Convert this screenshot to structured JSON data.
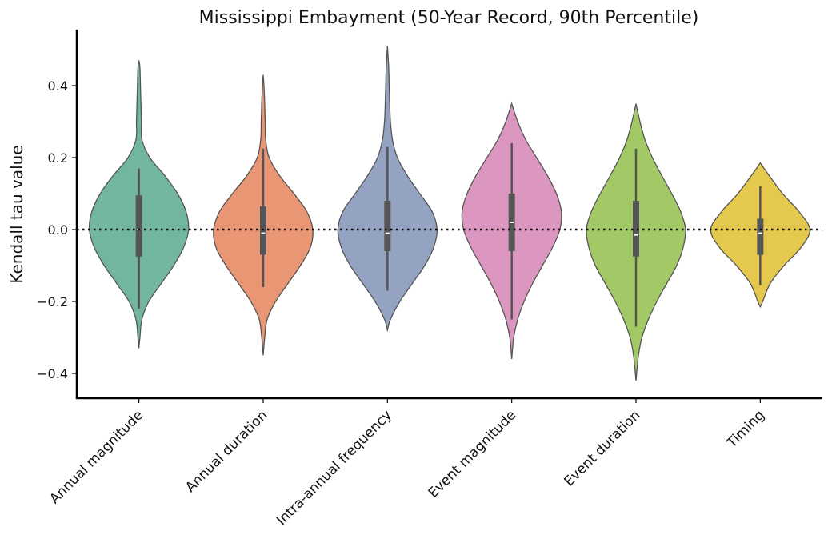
{
  "chart_data": {
    "type": "violin",
    "title": "Mississippi Embayment (50-Year Record, 90th Percentile)",
    "xlabel": "",
    "ylabel": "Kendall tau value",
    "ylim": [
      -0.47,
      0.55
    ],
    "yticks": [
      -0.4,
      -0.2,
      0.0,
      0.2,
      0.4
    ],
    "ytick_labels": [
      "−0.4",
      "−0.2",
      "0.0",
      "0.2",
      "0.4"
    ],
    "reference_line": {
      "y": 0.0,
      "style": "dotted",
      "color": "#000000"
    },
    "grid": false,
    "legend": "none",
    "categories": [
      "Annual magnitude",
      "Annual duration",
      "Intra-annual frequency",
      "Event magnitude",
      "Event duration",
      "Timing"
    ],
    "series": [
      {
        "category": "Annual magnitude",
        "color": "#72b6a1",
        "min": -0.33,
        "max": 0.47,
        "whisker_low": -0.22,
        "whisker_high": 0.17,
        "q1": -0.075,
        "median": 0.0,
        "q3": 0.095,
        "density": [
          [
            -0.33,
            0.0
          ],
          [
            -0.3,
            0.02
          ],
          [
            -0.25,
            0.06
          ],
          [
            -0.2,
            0.2
          ],
          [
            -0.15,
            0.45
          ],
          [
            -0.1,
            0.7
          ],
          [
            -0.05,
            0.9
          ],
          [
            0.0,
            1.0
          ],
          [
            0.05,
            0.95
          ],
          [
            0.1,
            0.78
          ],
          [
            0.15,
            0.52
          ],
          [
            0.2,
            0.22
          ],
          [
            0.25,
            0.06
          ],
          [
            0.3,
            0.05
          ],
          [
            0.35,
            0.04
          ],
          [
            0.4,
            0.03
          ],
          [
            0.45,
            0.02
          ],
          [
            0.47,
            0.0
          ]
        ]
      },
      {
        "category": "Annual duration",
        "color": "#e99675",
        "min": -0.35,
        "max": 0.43,
        "whisker_low": -0.16,
        "whisker_high": 0.225,
        "q1": -0.07,
        "median": -0.01,
        "q3": 0.065,
        "density": [
          [
            -0.35,
            0.0
          ],
          [
            -0.3,
            0.03
          ],
          [
            -0.25,
            0.08
          ],
          [
            -0.2,
            0.25
          ],
          [
            -0.15,
            0.5
          ],
          [
            -0.1,
            0.75
          ],
          [
            -0.05,
            0.95
          ],
          [
            0.0,
            1.0
          ],
          [
            0.05,
            0.88
          ],
          [
            0.1,
            0.62
          ],
          [
            0.15,
            0.33
          ],
          [
            0.2,
            0.12
          ],
          [
            0.25,
            0.05
          ],
          [
            0.3,
            0.04
          ],
          [
            0.35,
            0.03
          ],
          [
            0.4,
            0.015
          ],
          [
            0.43,
            0.0
          ]
        ]
      },
      {
        "category": "Intra-annual frequency",
        "color": "#95a3c3",
        "min": -0.28,
        "max": 0.51,
        "whisker_low": -0.17,
        "whisker_high": 0.23,
        "q1": -0.06,
        "median": -0.01,
        "q3": 0.08,
        "density": [
          [
            -0.28,
            0.0
          ],
          [
            -0.25,
            0.06
          ],
          [
            -0.2,
            0.25
          ],
          [
            -0.15,
            0.5
          ],
          [
            -0.1,
            0.75
          ],
          [
            -0.05,
            0.93
          ],
          [
            0.0,
            1.0
          ],
          [
            0.05,
            0.9
          ],
          [
            0.1,
            0.65
          ],
          [
            0.15,
            0.4
          ],
          [
            0.2,
            0.2
          ],
          [
            0.25,
            0.1
          ],
          [
            0.3,
            0.06
          ],
          [
            0.35,
            0.045
          ],
          [
            0.4,
            0.035
          ],
          [
            0.45,
            0.025
          ],
          [
            0.51,
            0.0
          ]
        ]
      },
      {
        "category": "Event magnitude",
        "color": "#db97c0",
        "min": -0.36,
        "max": 0.35,
        "whisker_low": -0.25,
        "whisker_high": 0.24,
        "q1": -0.06,
        "median": 0.02,
        "q3": 0.1,
        "density": [
          [
            -0.36,
            0.0
          ],
          [
            -0.3,
            0.04
          ],
          [
            -0.25,
            0.12
          ],
          [
            -0.2,
            0.25
          ],
          [
            -0.15,
            0.42
          ],
          [
            -0.1,
            0.62
          ],
          [
            -0.05,
            0.82
          ],
          [
            0.0,
            0.97
          ],
          [
            0.05,
            1.0
          ],
          [
            0.1,
            0.9
          ],
          [
            0.15,
            0.72
          ],
          [
            0.2,
            0.5
          ],
          [
            0.25,
            0.28
          ],
          [
            0.3,
            0.12
          ],
          [
            0.35,
            0.0
          ]
        ]
      },
      {
        "category": "Event duration",
        "color": "#a3c866",
        "min": -0.42,
        "max": 0.35,
        "whisker_low": -0.27,
        "whisker_high": 0.225,
        "q1": -0.075,
        "median": -0.015,
        "q3": 0.08,
        "density": [
          [
            -0.42,
            0.0
          ],
          [
            -0.35,
            0.05
          ],
          [
            -0.3,
            0.12
          ],
          [
            -0.25,
            0.25
          ],
          [
            -0.2,
            0.42
          ],
          [
            -0.15,
            0.62
          ],
          [
            -0.1,
            0.82
          ],
          [
            -0.05,
            0.95
          ],
          [
            0.0,
            1.0
          ],
          [
            0.05,
            0.9
          ],
          [
            0.1,
            0.72
          ],
          [
            0.15,
            0.52
          ],
          [
            0.2,
            0.33
          ],
          [
            0.25,
            0.18
          ],
          [
            0.3,
            0.08
          ],
          [
            0.35,
            0.0
          ]
        ]
      },
      {
        "category": "Timing",
        "color": "#e5c94f",
        "min": -0.215,
        "max": 0.185,
        "whisker_low": -0.155,
        "whisker_high": 0.12,
        "q1": -0.07,
        "median": -0.01,
        "q3": 0.03,
        "density": [
          [
            -0.215,
            0.0
          ],
          [
            -0.2,
            0.05
          ],
          [
            -0.15,
            0.2
          ],
          [
            -0.1,
            0.48
          ],
          [
            -0.05,
            0.82
          ],
          [
            0.0,
            1.0
          ],
          [
            0.05,
            0.78
          ],
          [
            0.1,
            0.45
          ],
          [
            0.15,
            0.18
          ],
          [
            0.185,
            0.0
          ]
        ]
      }
    ]
  }
}
